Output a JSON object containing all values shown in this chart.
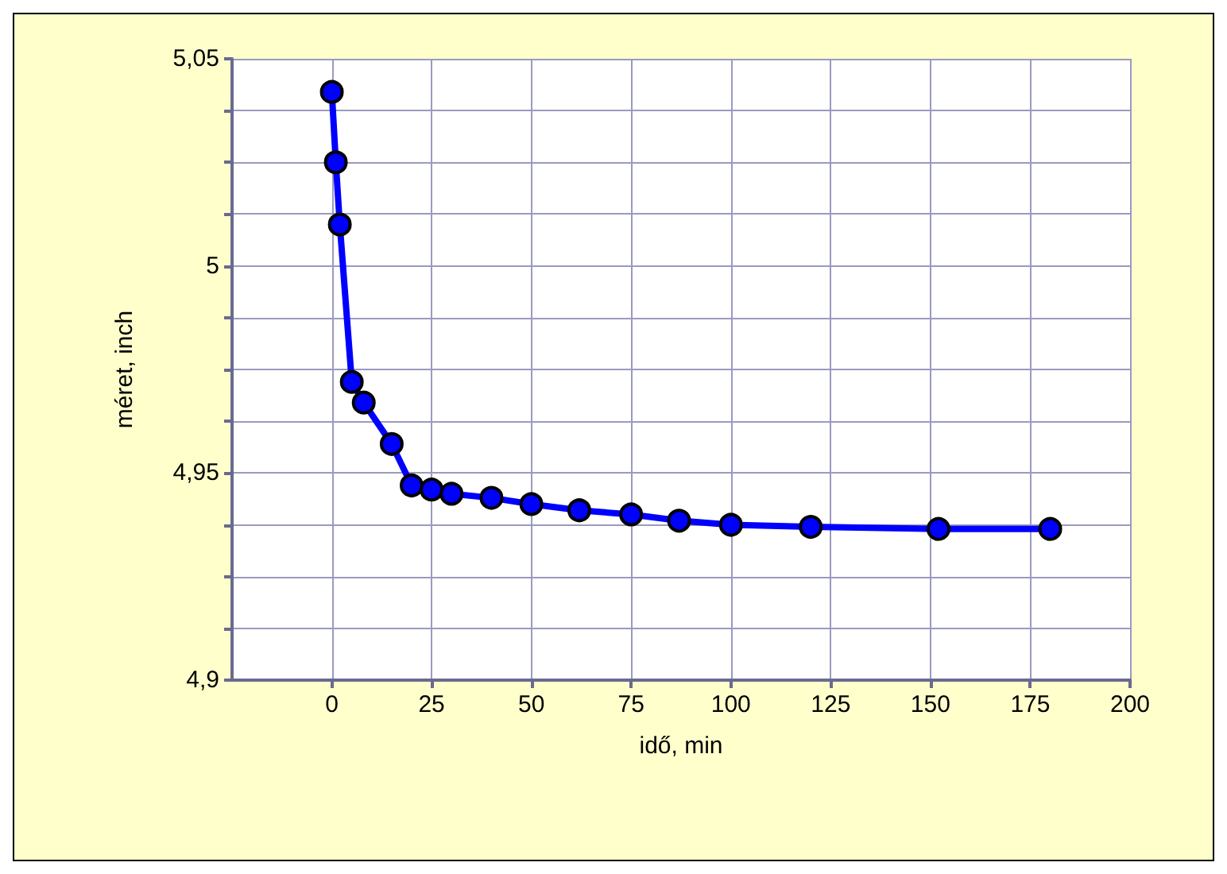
{
  "chart_data": {
    "type": "line",
    "xlabel": "idő, min",
    "ylabel": "méret, inch",
    "x": [
      0,
      1,
      2,
      5,
      8,
      15,
      20,
      25,
      30,
      40,
      50,
      62,
      75,
      87,
      100,
      120,
      152,
      180
    ],
    "series": [
      {
        "color": "#0000ff",
        "values": [
          5.042,
          5.025,
          5.01,
          4.972,
          4.967,
          4.957,
          4.947,
          4.946,
          4.945,
          4.944,
          4.9425,
          4.941,
          4.94,
          4.9385,
          4.9375,
          4.937,
          4.9365,
          4.9365
        ]
      }
    ],
    "xlim": [
      -25,
      200
    ],
    "xticks": [
      0,
      25,
      50,
      75,
      100,
      125,
      150,
      175,
      200
    ],
    "ylim": [
      4.9,
      5.05
    ],
    "yticks": [
      {
        "value": 4.9,
        "label": "4,9"
      },
      {
        "value": 4.9125,
        "label": null
      },
      {
        "value": 4.925,
        "label": null
      },
      {
        "value": 4.9375,
        "label": null
      },
      {
        "value": 4.95,
        "label": "4,95"
      },
      {
        "value": 4.9625,
        "label": null
      },
      {
        "value": 4.975,
        "label": null
      },
      {
        "value": 4.9875,
        "label": null
      },
      {
        "value": 5,
        "label": "5"
      },
      {
        "value": 5.0125,
        "label": null
      },
      {
        "value": 5.025,
        "label": null
      },
      {
        "value": 5.0375,
        "label": null
      },
      {
        "value": 5.05,
        "label": "5,05"
      }
    ],
    "grid": true,
    "marker": "circle",
    "line_style": "solid"
  }
}
